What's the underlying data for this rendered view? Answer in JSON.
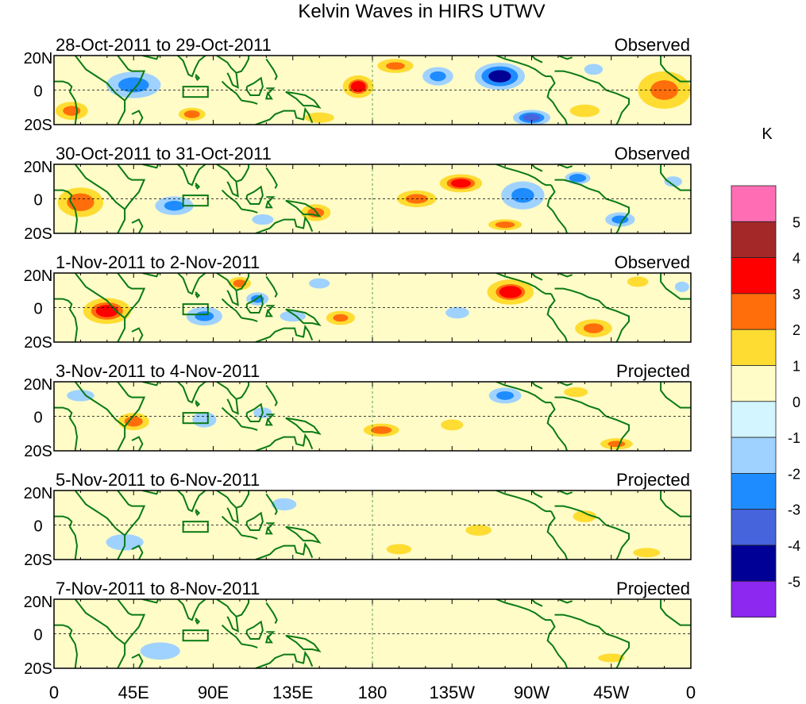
{
  "chart_data": {
    "type": "heatmap",
    "title": "Kelvin Waves in HIRS UTWV",
    "colorbar": {
      "unit": "K",
      "labels": [
        "5",
        "4",
        "3",
        "2",
        "1",
        "0",
        "-1",
        "-2",
        "-3",
        "-4",
        "-5"
      ],
      "colors": [
        "#ff6eb4",
        "#a42828",
        "#ff0000",
        "#ff6e0a",
        "#ffdc32",
        "#fffcc8",
        "#d2f5ff",
        "#a0d2ff",
        "#1e8cff",
        "#4664dc",
        "#000096",
        "#8c28f0"
      ]
    },
    "x_ticks": [
      "0",
      "45E",
      "90E",
      "135E",
      "180",
      "135W",
      "90W",
      "45W",
      "0"
    ],
    "y_ticks": [
      "20N",
      "0",
      "20S"
    ],
    "xlim_deg": [
      0,
      360
    ],
    "ylim_deg": [
      -20,
      20
    ],
    "panels": [
      {
        "period": "28-Oct-2011 to 29-Oct-2011",
        "status": "Observed",
        "anomalies": [
          {
            "lon": 45,
            "lat": 3,
            "v": -2.8,
            "rx": 22,
            "ry": 11
          },
          {
            "lon": 10,
            "lat": -12,
            "v": 2.4,
            "rx": 14,
            "ry": 8
          },
          {
            "lon": 78,
            "lat": -14,
            "v": 2.2,
            "rx": 12,
            "ry": 6
          },
          {
            "lon": 150,
            "lat": -16,
            "v": 2.0,
            "rx": 14,
            "ry": 5
          },
          {
            "lon": 172,
            "lat": 2,
            "v": 3.2,
            "rx": 12,
            "ry": 9
          },
          {
            "lon": 193,
            "lat": 14,
            "v": 2.6,
            "rx": 15,
            "ry": 6
          },
          {
            "lon": 217,
            "lat": 8,
            "v": -2.5,
            "rx": 13,
            "ry": 8
          },
          {
            "lon": 252,
            "lat": 8,
            "v": -4.2,
            "rx": 18,
            "ry": 10
          },
          {
            "lon": 270,
            "lat": -16,
            "v": -3.6,
            "rx": 14,
            "ry": 6
          },
          {
            "lon": 300,
            "lat": -12,
            "v": 2.0,
            "rx": 14,
            "ry": 6
          },
          {
            "lon": 345,
            "lat": 0,
            "v": 2.6,
            "rx": 22,
            "ry": 16
          },
          {
            "lon": 305,
            "lat": 12,
            "v": -1.4,
            "rx": 10,
            "ry": 6
          }
        ]
      },
      {
        "period": "30-Oct-2011 to 31-Oct-2011",
        "status": "Observed",
        "anomalies": [
          {
            "lon": 15,
            "lat": -2,
            "v": 3.0,
            "rx": 18,
            "ry": 12
          },
          {
            "lon": 68,
            "lat": -4,
            "v": -2.6,
            "rx": 16,
            "ry": 8
          },
          {
            "lon": 148,
            "lat": -8,
            "v": 2.8,
            "rx": 12,
            "ry": 7
          },
          {
            "lon": 118,
            "lat": -12,
            "v": -1.5,
            "rx": 12,
            "ry": 6
          },
          {
            "lon": 205,
            "lat": 0,
            "v": 2.8,
            "rx": 16,
            "ry": 7
          },
          {
            "lon": 230,
            "lat": 9,
            "v": 3.5,
            "rx": 16,
            "ry": 7
          },
          {
            "lon": 265,
            "lat": 2,
            "v": -2.6,
            "rx": 18,
            "ry": 12
          },
          {
            "lon": 296,
            "lat": 12,
            "v": -2.0,
            "rx": 12,
            "ry": 6
          },
          {
            "lon": 255,
            "lat": -15,
            "v": 2.2,
            "rx": 15,
            "ry": 5
          },
          {
            "lon": 320,
            "lat": -12,
            "v": -2.8,
            "rx": 12,
            "ry": 6
          },
          {
            "lon": 350,
            "lat": 10,
            "v": -1.5,
            "rx": 10,
            "ry": 6
          }
        ]
      },
      {
        "period": "1-Nov-2011 to 2-Nov-2011",
        "status": "Observed",
        "anomalies": [
          {
            "lon": 30,
            "lat": -2,
            "v": 3.5,
            "rx": 18,
            "ry": 10
          },
          {
            "lon": 85,
            "lat": -5,
            "v": -2.6,
            "rx": 15,
            "ry": 8
          },
          {
            "lon": 115,
            "lat": 5,
            "v": -2.2,
            "rx": 10,
            "ry": 6
          },
          {
            "lon": 105,
            "lat": 14,
            "v": 2.2,
            "rx": 10,
            "ry": 6
          },
          {
            "lon": 135,
            "lat": -5,
            "v": -1.6,
            "rx": 14,
            "ry": 6
          },
          {
            "lon": 150,
            "lat": 14,
            "v": -1.2,
            "rx": 10,
            "ry": 5
          },
          {
            "lon": 162,
            "lat": -6,
            "v": 2.6,
            "rx": 12,
            "ry": 6
          },
          {
            "lon": 258,
            "lat": 9,
            "v": 3.2,
            "rx": 18,
            "ry": 10
          },
          {
            "lon": 228,
            "lat": -3,
            "v": -1.3,
            "rx": 12,
            "ry": 6
          },
          {
            "lon": 305,
            "lat": -12,
            "v": 2.4,
            "rx": 16,
            "ry": 8
          },
          {
            "lon": 330,
            "lat": 15,
            "v": 2.0,
            "rx": 10,
            "ry": 5
          },
          {
            "lon": 355,
            "lat": 12,
            "v": -1.5,
            "rx": 8,
            "ry": 6
          }
        ]
      },
      {
        "period": "3-Nov-2011 to 4-Nov-2011",
        "status": "Projected",
        "anomalies": [
          {
            "lon": 45,
            "lat": -3,
            "v": 2.2,
            "rx": 14,
            "ry": 8
          },
          {
            "lon": 15,
            "lat": 12,
            "v": -1.3,
            "rx": 14,
            "ry": 6
          },
          {
            "lon": 85,
            "lat": -2,
            "v": -1.8,
            "rx": 12,
            "ry": 8
          },
          {
            "lon": 118,
            "lat": 2,
            "v": -1.6,
            "rx": 10,
            "ry": 6
          },
          {
            "lon": 185,
            "lat": -8,
            "v": 2.2,
            "rx": 16,
            "ry": 6
          },
          {
            "lon": 255,
            "lat": 12,
            "v": -2.4,
            "rx": 14,
            "ry": 7
          },
          {
            "lon": 295,
            "lat": 14,
            "v": 1.8,
            "rx": 12,
            "ry": 5
          },
          {
            "lon": 318,
            "lat": -16,
            "v": 2.4,
            "rx": 14,
            "ry": 5
          },
          {
            "lon": 225,
            "lat": -5,
            "v": 1.4,
            "rx": 12,
            "ry": 6
          }
        ]
      },
      {
        "period": "5-Nov-2011 to 6-Nov-2011",
        "status": "Projected",
        "anomalies": [
          {
            "lon": 40,
            "lat": -10,
            "v": -1.2,
            "rx": 18,
            "ry": 8
          },
          {
            "lon": 240,
            "lat": -3,
            "v": 1.6,
            "rx": 14,
            "ry": 6
          },
          {
            "lon": 300,
            "lat": 5,
            "v": 1.3,
            "rx": 12,
            "ry": 6
          },
          {
            "lon": 335,
            "lat": -16,
            "v": 1.7,
            "rx": 14,
            "ry": 5
          },
          {
            "lon": 195,
            "lat": -14,
            "v": 1.2,
            "rx": 12,
            "ry": 5
          },
          {
            "lon": 130,
            "lat": 12,
            "v": -1.2,
            "rx": 12,
            "ry": 6
          }
        ]
      },
      {
        "period": "7-Nov-2011 to 8-Nov-2011",
        "status": "Projected",
        "anomalies": [
          {
            "lon": 60,
            "lat": -10,
            "v": -1.1,
            "rx": 18,
            "ry": 8
          },
          {
            "lon": 200,
            "lat": -4,
            "v": 0.6,
            "rx": 30,
            "ry": 8
          },
          {
            "lon": 315,
            "lat": -14,
            "v": 1.1,
            "rx": 12,
            "ry": 4
          },
          {
            "lon": 345,
            "lat": 10,
            "v": 1.0,
            "rx": 10,
            "ry": 6
          }
        ]
      }
    ]
  }
}
